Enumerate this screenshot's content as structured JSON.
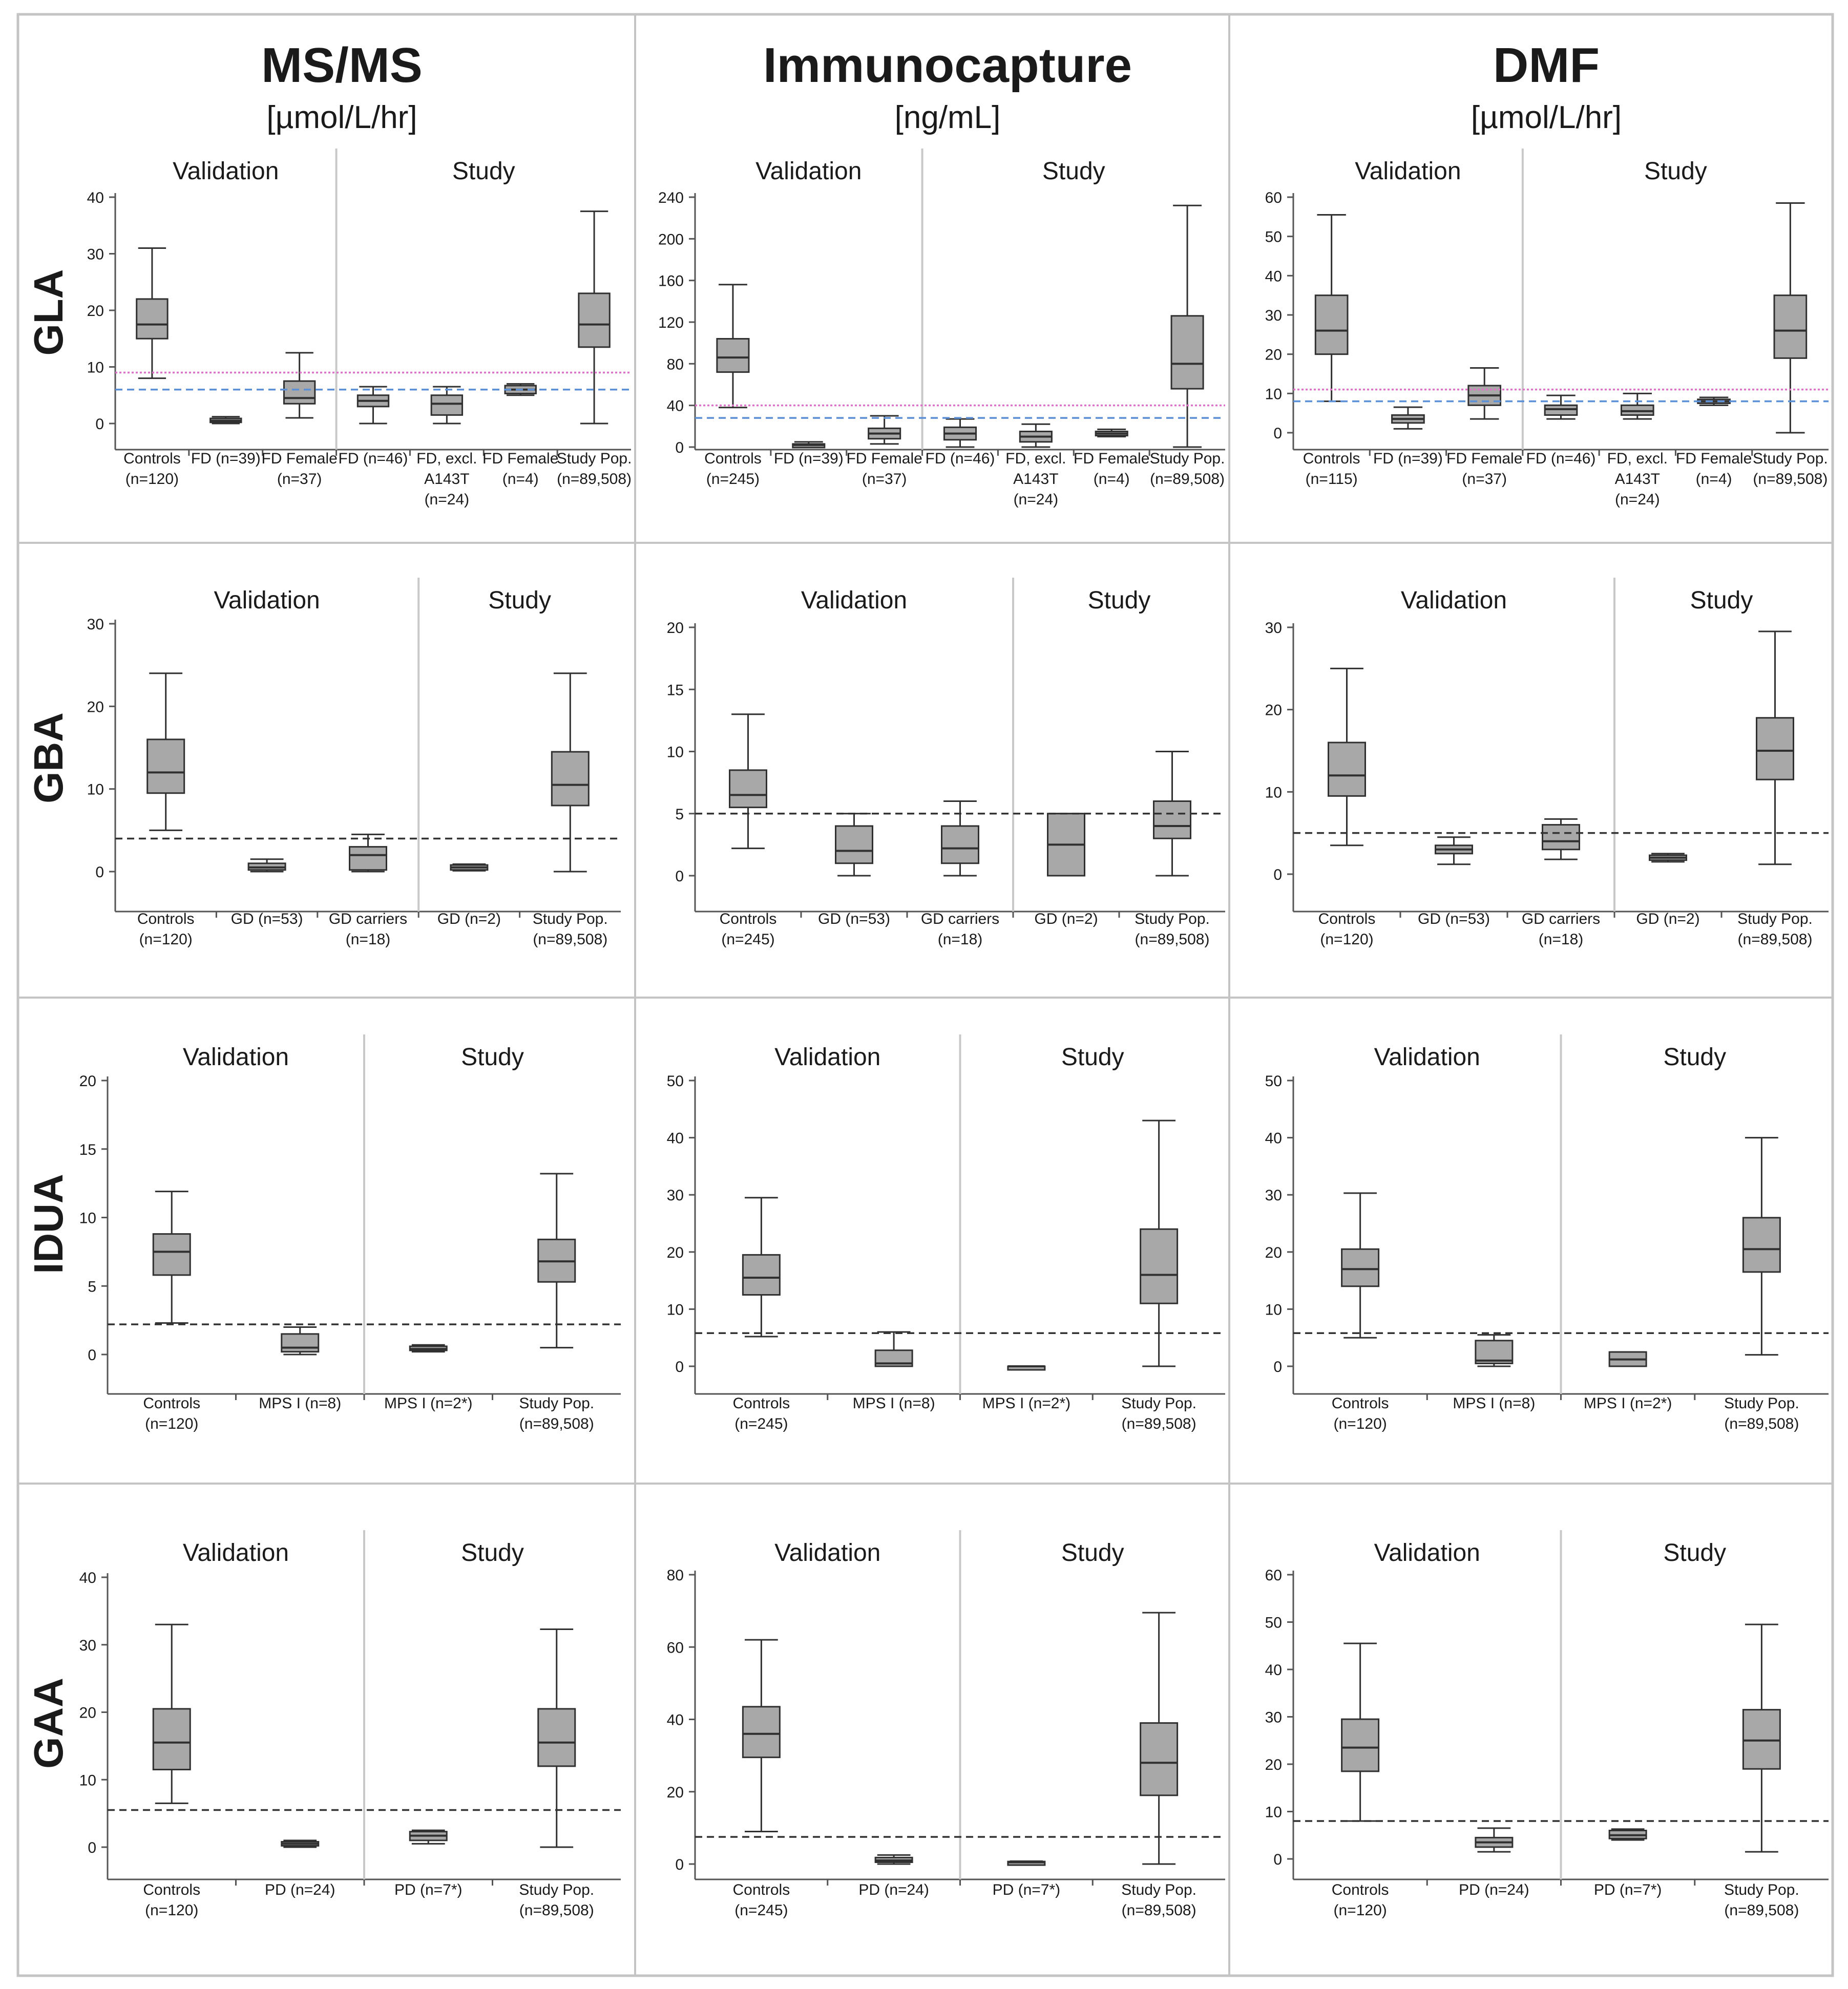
{
  "colors": {
    "frame": "#c4c4c4",
    "box_fill": "#a8a8a8",
    "box_stroke": "#303030",
    "axis": "#555555",
    "text": "#1a1a1a",
    "cutoff_dark": "#333333",
    "cutoff_blue": "#5b8fd6",
    "cutoff_pink": "#e070c8",
    "section_divider": "#c8c8c8"
  },
  "columns": [
    {
      "title": "MS/MS",
      "unit": "[µmol/L/hr]"
    },
    {
      "title": "Immunocapture",
      "unit": "[ng/mL]"
    },
    {
      "title": "DMF",
      "unit": "[µmol/L/hr]"
    }
  ],
  "rows": [
    "GLA",
    "GBA",
    "IDUA",
    "GAA"
  ],
  "section_labels": {
    "validation": "Validation",
    "study": "Study"
  },
  "chart_data": [
    {
      "type": "box",
      "row": "GLA",
      "column": "MS/MS",
      "ylim": [
        0,
        40
      ],
      "yticks": [
        0,
        10,
        20,
        30,
        40
      ],
      "validation_count": 3,
      "cutoffs": [
        {
          "value": 9,
          "style": "pink"
        },
        {
          "value": 6,
          "style": "blue"
        }
      ],
      "groups": [
        {
          "label": [
            "Controls",
            "(n=120)"
          ],
          "min": 8,
          "q1": 15,
          "median": 17.5,
          "q3": 22,
          "max": 31
        },
        {
          "label": [
            "FD (n=39)"
          ],
          "min": 0,
          "q1": 0.2,
          "median": 0.5,
          "q3": 0.9,
          "max": 1.2
        },
        {
          "label": [
            "FD Female",
            "(n=37)"
          ],
          "min": 1,
          "q1": 3.5,
          "median": 4.5,
          "q3": 7.5,
          "max": 12.5
        },
        {
          "label": [
            "FD (n=46)"
          ],
          "min": 0,
          "q1": 3,
          "median": 4,
          "q3": 5,
          "max": 6.5
        },
        {
          "label": [
            "FD, excl.",
            "A143T",
            "(n=24)"
          ],
          "min": 0,
          "q1": 1.5,
          "median": 3.5,
          "q3": 5,
          "max": 6.5
        },
        {
          "label": [
            "FD Female",
            "(n=4)"
          ],
          "min": 5,
          "q1": 5.3,
          "median": 6,
          "q3": 6.7,
          "max": 7
        },
        {
          "label": [
            "Study Pop.",
            "(n=89,508)"
          ],
          "min": 0,
          "q1": 13.5,
          "median": 17.5,
          "q3": 23,
          "max": 37.5
        }
      ]
    },
    {
      "type": "box",
      "row": "GLA",
      "column": "Immunocapture",
      "ylim": [
        0,
        240
      ],
      "yticks": [
        0,
        40,
        80,
        120,
        160,
        200,
        240
      ],
      "validation_count": 3,
      "cutoffs": [
        {
          "value": 40,
          "style": "pink"
        },
        {
          "value": 28,
          "style": "blue"
        }
      ],
      "groups": [
        {
          "label": [
            "Controls",
            "(n=245)"
          ],
          "min": 38,
          "q1": 72,
          "median": 86,
          "q3": 104,
          "max": 156
        },
        {
          "label": [
            "FD (n=39)"
          ],
          "min": 0,
          "q1": 1,
          "median": 2,
          "q3": 3,
          "max": 5
        },
        {
          "label": [
            "FD Female",
            "(n=37)"
          ],
          "min": 3,
          "q1": 8,
          "median": 13,
          "q3": 18,
          "max": 30
        },
        {
          "label": [
            "FD (n=46)"
          ],
          "min": 0,
          "q1": 7,
          "median": 13,
          "q3": 19,
          "max": 27
        },
        {
          "label": [
            "FD, excl.",
            "A143T",
            "(n=24)"
          ],
          "min": 0,
          "q1": 5,
          "median": 10,
          "q3": 15,
          "max": 22
        },
        {
          "label": [
            "FD Female",
            "(n=4)"
          ],
          "min": 10,
          "q1": 11,
          "median": 13,
          "q3": 15,
          "max": 17
        },
        {
          "label": [
            "Study Pop.",
            "(n=89,508)"
          ],
          "min": 0,
          "q1": 56,
          "median": 80,
          "q3": 126,
          "max": 232
        }
      ]
    },
    {
      "type": "box",
      "row": "GLA",
      "column": "DMF",
      "ylim": [
        0,
        60
      ],
      "yticks": [
        0,
        10,
        20,
        30,
        40,
        50,
        60
      ],
      "validation_count": 3,
      "cutoffs": [
        {
          "value": 11,
          "style": "pink"
        },
        {
          "value": 8,
          "style": "blue"
        }
      ],
      "groups": [
        {
          "label": [
            "Controls",
            "(n=115)"
          ],
          "min": 8,
          "q1": 20,
          "median": 26,
          "q3": 35,
          "max": 55.5
        },
        {
          "label": [
            "FD (n=39)"
          ],
          "min": 1,
          "q1": 2.5,
          "median": 3.5,
          "q3": 4.5,
          "max": 6.5
        },
        {
          "label": [
            "FD Female",
            "(n=37)"
          ],
          "min": 3.5,
          "q1": 7,
          "median": 9.5,
          "q3": 12,
          "max": 16.5
        },
        {
          "label": [
            "FD (n=46)"
          ],
          "min": 3.5,
          "q1": 4.5,
          "median": 6,
          "q3": 7,
          "max": 9.5
        },
        {
          "label": [
            "FD, excl.",
            "A143T",
            "(n=24)"
          ],
          "min": 3.5,
          "q1": 4.5,
          "median": 5.5,
          "q3": 7,
          "max": 10
        },
        {
          "label": [
            "FD Female",
            "(n=4)"
          ],
          "min": 7,
          "q1": 7.5,
          "median": 8,
          "q3": 8.5,
          "max": 9
        },
        {
          "label": [
            "Study Pop.",
            "(n=89,508)"
          ],
          "min": 0,
          "q1": 19,
          "median": 26,
          "q3": 35,
          "max": 58.5
        }
      ]
    },
    {
      "type": "box",
      "row": "GBA",
      "column": "MS/MS",
      "ylim": [
        0,
        30
      ],
      "yticks": [
        0,
        10,
        20,
        30
      ],
      "validation_count": 3,
      "cutoffs": [
        {
          "value": 4,
          "style": "dark"
        }
      ],
      "groups": [
        {
          "label": [
            "Controls",
            "(n=120)"
          ],
          "min": 5,
          "q1": 9.5,
          "median": 12,
          "q3": 16,
          "max": 24
        },
        {
          "label": [
            "GD (n=53)"
          ],
          "min": 0,
          "q1": 0.2,
          "median": 0.5,
          "q3": 1,
          "max": 1.5
        },
        {
          "label": [
            "GD carriers",
            "(n=18)"
          ],
          "min": 0,
          "q1": 0.2,
          "median": 2,
          "q3": 3,
          "max": 4.5
        },
        {
          "label": [
            "GD (n=2)"
          ],
          "min": 0.1,
          "q1": 0.2,
          "median": 0.5,
          "q3": 0.8,
          "max": 0.9
        },
        {
          "label": [
            "Study Pop.",
            "(n=89,508)"
          ],
          "min": 0,
          "q1": 8,
          "median": 10.5,
          "q3": 14.5,
          "max": 24
        }
      ]
    },
    {
      "type": "box",
      "row": "GBA",
      "column": "Immunocapture",
      "ylim": [
        0,
        20
      ],
      "yticks": [
        0,
        5,
        10,
        15,
        20
      ],
      "validation_count": 3,
      "cutoffs": [
        {
          "value": 5,
          "style": "dark"
        }
      ],
      "groups": [
        {
          "label": [
            "Controls",
            "(n=245)"
          ],
          "min": 2.2,
          "q1": 5.5,
          "median": 6.5,
          "q3": 8.5,
          "max": 13
        },
        {
          "label": [
            "GD (n=53)"
          ],
          "min": 0,
          "q1": 1,
          "median": 2,
          "q3": 4,
          "max": 5
        },
        {
          "label": [
            "GD carriers",
            "(n=18)"
          ],
          "min": 0,
          "q1": 1,
          "median": 2.2,
          "q3": 4,
          "max": 6
        },
        {
          "label": [
            "GD (n=2)"
          ],
          "min": 0,
          "q1": 0,
          "median": 2.5,
          "q3": 5,
          "max": 5
        },
        {
          "label": [
            "Study Pop.",
            "(n=89,508)"
          ],
          "min": 0,
          "q1": 3,
          "median": 4,
          "q3": 6,
          "max": 10
        }
      ]
    },
    {
      "type": "box",
      "row": "GBA",
      "column": "DMF",
      "ylim": [
        0,
        30
      ],
      "yticks": [
        0,
        10,
        20,
        30
      ],
      "validation_count": 3,
      "cutoffs": [
        {
          "value": 5,
          "style": "dark"
        }
      ],
      "groups": [
        {
          "label": [
            "Controls",
            "(n=120)"
          ],
          "min": 3.5,
          "q1": 9.5,
          "median": 12,
          "q3": 16,
          "max": 25
        },
        {
          "label": [
            "GD (n=53)"
          ],
          "min": 1.2,
          "q1": 2.5,
          "median": 3,
          "q3": 3.5,
          "max": 4.5
        },
        {
          "label": [
            "GD carriers",
            "(n=18)"
          ],
          "min": 1.8,
          "q1": 3,
          "median": 4,
          "q3": 6,
          "max": 6.7
        },
        {
          "label": [
            "GD (n=2)"
          ],
          "min": 1.5,
          "q1": 1.7,
          "median": 2,
          "q3": 2.3,
          "max": 2.5
        },
        {
          "label": [
            "Study Pop.",
            "(n=89,508)"
          ],
          "min": 1.2,
          "q1": 11.5,
          "median": 15,
          "q3": 19,
          "max": 29.5
        }
      ]
    },
    {
      "type": "box",
      "row": "IDUA",
      "column": "MS/MS",
      "ylim": [
        0,
        20
      ],
      "yticks": [
        0,
        5,
        10,
        15,
        20
      ],
      "validation_count": 2,
      "cutoffs": [
        {
          "value": 2.2,
          "style": "dark"
        }
      ],
      "groups": [
        {
          "label": [
            "Controls",
            "(n=120)"
          ],
          "min": 2.3,
          "q1": 5.8,
          "median": 7.5,
          "q3": 8.8,
          "max": 11.9
        },
        {
          "label": [
            "MPS I (n=8)"
          ],
          "min": 0,
          "q1": 0.2,
          "median": 0.5,
          "q3": 1.5,
          "max": 2
        },
        {
          "label": [
            "MPS I (n=2*)"
          ],
          "min": 0.2,
          "q1": 0.3,
          "median": 0.4,
          "q3": 0.6,
          "max": 0.7
        },
        {
          "label": [
            "Study Pop.",
            "(n=89,508)"
          ],
          "min": 0.5,
          "q1": 5.3,
          "median": 6.8,
          "q3": 8.4,
          "max": 13.2
        }
      ]
    },
    {
      "type": "box",
      "row": "IDUA",
      "column": "Immunocapture",
      "ylim": [
        0,
        50
      ],
      "yticks": [
        0,
        10,
        20,
        30,
        40,
        50
      ],
      "validation_count": 2,
      "cutoffs": [
        {
          "value": 5.8,
          "style": "dark"
        }
      ],
      "groups": [
        {
          "label": [
            "Controls",
            "(n=245)"
          ],
          "min": 5.2,
          "q1": 12.5,
          "median": 15.5,
          "q3": 19.5,
          "max": 29.5
        },
        {
          "label": [
            "MPS I (n=8)"
          ],
          "min": 0,
          "q1": 0,
          "median": 0.5,
          "q3": 2.8,
          "max": 6
        },
        {
          "label": [
            "MPS I (n=2*)"
          ],
          "min": 0,
          "q1": 0,
          "median": 0,
          "q3": 0,
          "max": 0
        },
        {
          "label": [
            "Study Pop.",
            "(n=89,508)"
          ],
          "min": 0,
          "q1": 11,
          "median": 16,
          "q3": 24,
          "max": 43
        }
      ]
    },
    {
      "type": "box",
      "row": "IDUA",
      "column": "DMF",
      "ylim": [
        0,
        50
      ],
      "yticks": [
        0,
        10,
        20,
        30,
        40,
        50
      ],
      "validation_count": 2,
      "cutoffs": [
        {
          "value": 5.8,
          "style": "dark"
        }
      ],
      "groups": [
        {
          "label": [
            "Controls",
            "(n=120)"
          ],
          "min": 5,
          "q1": 14,
          "median": 17,
          "q3": 20.5,
          "max": 30.3
        },
        {
          "label": [
            "MPS I (n=8)"
          ],
          "min": 0,
          "q1": 0.5,
          "median": 1,
          "q3": 4.5,
          "max": 5.5
        },
        {
          "label": [
            "MPS I (n=2*)"
          ],
          "min": 0,
          "q1": 0,
          "median": 1.2,
          "q3": 2.5,
          "max": 2.5
        },
        {
          "label": [
            "Study Pop.",
            "(n=89,508)"
          ],
          "min": 2,
          "q1": 16.5,
          "median": 20.5,
          "q3": 26,
          "max": 40
        }
      ]
    },
    {
      "type": "box",
      "row": "GAA",
      "column": "MS/MS",
      "ylim": [
        0,
        40
      ],
      "yticks": [
        0,
        10,
        20,
        30,
        40
      ],
      "validation_count": 2,
      "cutoffs": [
        {
          "value": 5.5,
          "style": "dark"
        }
      ],
      "groups": [
        {
          "label": [
            "Controls",
            "(n=120)"
          ],
          "min": 6.5,
          "q1": 11.5,
          "median": 15.5,
          "q3": 20.5,
          "max": 33
        },
        {
          "label": [
            "PD (n=24)"
          ],
          "min": 0,
          "q1": 0.2,
          "median": 0.5,
          "q3": 0.8,
          "max": 1
        },
        {
          "label": [
            "PD (n=7*)"
          ],
          "min": 0.5,
          "q1": 1,
          "median": 1.7,
          "q3": 2.3,
          "max": 2.5
        },
        {
          "label": [
            "Study Pop.",
            "(n=89,508)"
          ],
          "min": 0,
          "q1": 12,
          "median": 15.5,
          "q3": 20.5,
          "max": 32.3
        }
      ]
    },
    {
      "type": "box",
      "row": "GAA",
      "column": "Immunocapture",
      "ylim": [
        0,
        80
      ],
      "yticks": [
        0,
        20,
        40,
        60,
        80
      ],
      "validation_count": 2,
      "cutoffs": [
        {
          "value": 7.5,
          "style": "dark"
        }
      ],
      "groups": [
        {
          "label": [
            "Controls",
            "(n=245)"
          ],
          "min": 9,
          "q1": 29.5,
          "median": 36,
          "q3": 43.5,
          "max": 62
        },
        {
          "label": [
            "PD (n=24)"
          ],
          "min": 0,
          "q1": 0.5,
          "median": 1,
          "q3": 1.8,
          "max": 2.5
        },
        {
          "label": [
            "PD (n=7*)"
          ],
          "min": 0,
          "q1": 0.2,
          "median": 0.5,
          "q3": 0.7,
          "max": 0.8
        },
        {
          "label": [
            "Study Pop.",
            "(n=89,508)"
          ],
          "min": 0,
          "q1": 19,
          "median": 28,
          "q3": 39,
          "max": 69.5
        }
      ]
    },
    {
      "type": "box",
      "row": "GAA",
      "column": "DMF",
      "ylim": [
        0,
        60
      ],
      "yticks": [
        0,
        10,
        20,
        30,
        40,
        50,
        60
      ],
      "validation_count": 2,
      "cutoffs": [
        {
          "value": 8,
          "style": "dark"
        }
      ],
      "groups": [
        {
          "label": [
            "Controls",
            "(n=120)"
          ],
          "min": 8,
          "q1": 18.5,
          "median": 23.5,
          "q3": 29.5,
          "max": 45.5
        },
        {
          "label": [
            "PD (n=24)"
          ],
          "min": 1.5,
          "q1": 2.5,
          "median": 3.5,
          "q3": 4.5,
          "max": 6.5
        },
        {
          "label": [
            "PD (n=7*)"
          ],
          "min": 4,
          "q1": 4.3,
          "median": 5,
          "q3": 6,
          "max": 6.3
        },
        {
          "label": [
            "Study Pop.",
            "(n=89,508)"
          ],
          "min": 1.5,
          "q1": 19,
          "median": 25,
          "q3": 31.5,
          "max": 49.5
        }
      ]
    }
  ]
}
